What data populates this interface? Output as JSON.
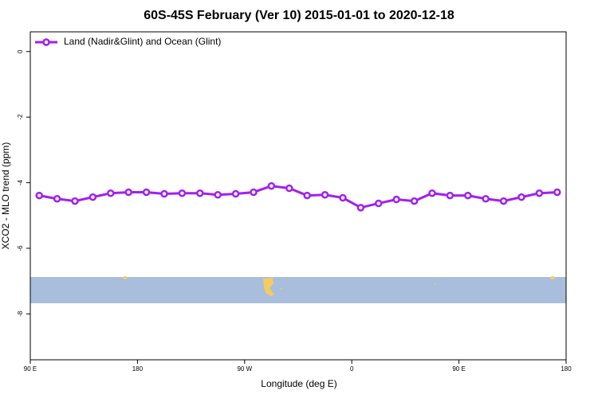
{
  "chart_data": {
    "type": "line",
    "title": "60S-45S February (Ver 10)   2015-01-01 to 2020-12-18",
    "x_label": "Longitude (deg E)",
    "y_label": "XCO2 - MLO trend (ppm)",
    "x": [
      97.5,
      112.5,
      127.5,
      142.5,
      157.5,
      172.5,
      187.5,
      202.5,
      217.5,
      232.5,
      247.5,
      262.5,
      277.5,
      292.5,
      307.5,
      322.5,
      337.5,
      352.5,
      367.5,
      382.5,
      397.5,
      412.5,
      427.5,
      442.5,
      457.5,
      472.5,
      487.5,
      502.5,
      517.5,
      532.5
    ],
    "series": [
      {
        "name": "Land (Nadir&Glint) and Ocean (Glint)",
        "color": "#a020f0",
        "values": [
          -4.39,
          -4.49,
          -4.56,
          -4.44,
          -4.32,
          -4.29,
          -4.29,
          -4.34,
          -4.32,
          -4.32,
          -4.37,
          -4.34,
          -4.29,
          -4.1,
          -4.17,
          -4.39,
          -4.37,
          -4.46,
          -4.76,
          -4.63,
          -4.51,
          -4.56,
          -4.32,
          -4.39,
          -4.39,
          -4.49,
          -4.56,
          -4.44,
          -4.32,
          -4.29
        ]
      }
    ],
    "xlim": [
      90,
      540
    ],
    "xticks": [
      {
        "value": 90,
        "label": "90 E"
      },
      {
        "value": 180,
        "label": "180"
      },
      {
        "value": 270,
        "label": "90 W"
      },
      {
        "value": 360,
        "label": "0"
      },
      {
        "value": 450,
        "label": "90 E"
      },
      {
        "value": 540,
        "label": "180"
      }
    ],
    "ylim": [
      -9.4,
      0.6
    ],
    "yticks": [
      -8,
      -6,
      -4,
      -2,
      0
    ],
    "legend": "top-left"
  }
}
